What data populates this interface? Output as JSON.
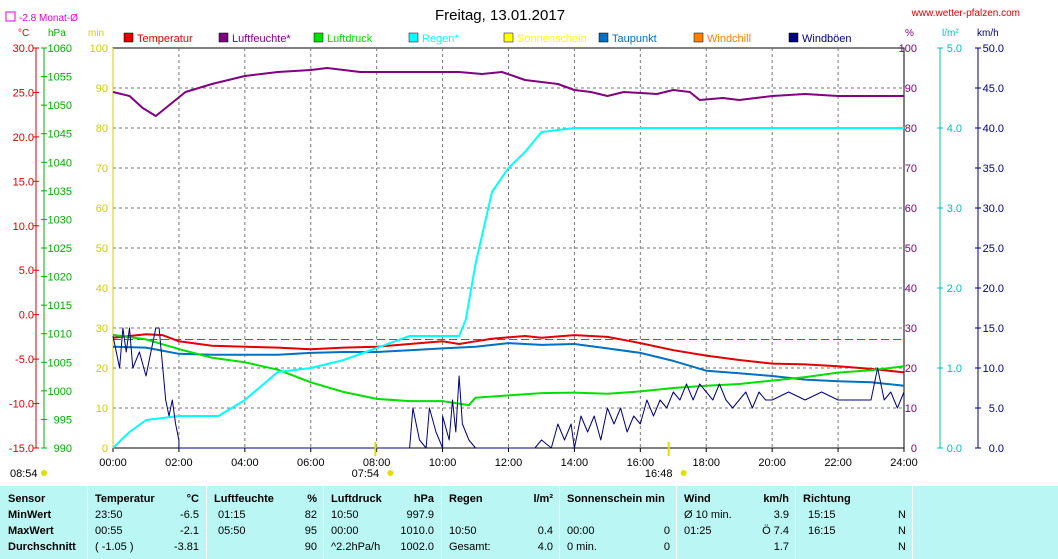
{
  "header": {
    "title": "Freitag, 13.01.2017",
    "site": "www.wetter-pfalzen.com",
    "monthly_avg_label": "-2.8 Monat-Ø"
  },
  "units": {
    "temp": "°C",
    "pressure": "hPa",
    "sunshine": "min",
    "humidity": "%",
    "rain": "l/m²",
    "wind": "km/h"
  },
  "legend": [
    {
      "name": "Temperatur",
      "color": "#e00000"
    },
    {
      "name": "Luftfeuchte*",
      "color": "#800080"
    },
    {
      "name": "Luftdruck",
      "color": "#00e000"
    },
    {
      "name": "Regen*",
      "color": "#00ffff"
    },
    {
      "name": "Sonnenschein",
      "color": "#ffff00"
    },
    {
      "name": "Taupunkt",
      "color": "#0070c0"
    },
    {
      "name": "Windchill",
      "color": "#ff8000"
    },
    {
      "name": "Windböen",
      "color": "#000080"
    }
  ],
  "chart_data": {
    "type": "line",
    "title": "Freitag, 13.01.2017",
    "x_ticks": [
      "00:00",
      "02:00",
      "04:00",
      "06:00",
      "08:00",
      "10:00",
      "12:00",
      "14:00",
      "16:00",
      "18:00",
      "20:00",
      "22:00",
      "24:00"
    ],
    "x_range_hours": [
      0,
      24
    ],
    "axes": {
      "temp_c": {
        "range": [
          -15,
          30
        ],
        "ticks": [
          "30.0",
          "25.0",
          "20.0",
          "15.0",
          "10.0",
          "5.0",
          "0.0",
          "-5.0",
          "-10.0",
          "-15.0"
        ]
      },
      "pressure_hpa": {
        "range": [
          990,
          1060
        ],
        "ticks": [
          "1060",
          "1055",
          "1050",
          "1045",
          "1040",
          "1035",
          "1030",
          "1025",
          "1020",
          "1015",
          "1010",
          "1005",
          "1000",
          "995",
          "990"
        ]
      },
      "sunshine_min": {
        "range": [
          0,
          100
        ],
        "ticks": [
          "100",
          "90",
          "80",
          "70",
          "60",
          "50",
          "40",
          "30",
          "20",
          "10",
          "0"
        ]
      },
      "humidity_pct": {
        "range": [
          0,
          100
        ],
        "ticks": [
          "100",
          "90",
          "80",
          "70",
          "60",
          "50",
          "40",
          "30",
          "20",
          "10",
          "0"
        ]
      },
      "rain_lm2": {
        "range": [
          0,
          5
        ],
        "ticks": [
          "5.0",
          "4.0",
          "3.0",
          "2.0",
          "1.0",
          "0.0"
        ]
      },
      "wind_kmh": {
        "range": [
          0,
          50
        ],
        "ticks": [
          "50.0",
          "45.0",
          "40.0",
          "35.0",
          "30.0",
          "25.0",
          "20.0",
          "15.0",
          "10.0",
          "5.0",
          "0.0"
        ]
      }
    },
    "monthly_avg_temp": -2.8,
    "grid": true,
    "sun_markers": [
      {
        "label": "08:54",
        "hour": 8.9,
        "where": "left"
      },
      {
        "label": "07:54",
        "hour": 7.9,
        "where": "below"
      },
      {
        "label": "16:48",
        "hour": 16.8,
        "where": "below"
      }
    ],
    "series": [
      {
        "name": "Luftfeuchte*",
        "axis": "humidity_pct",
        "color": "#800080",
        "points": [
          [
            0,
            89
          ],
          [
            0.5,
            88
          ],
          [
            0.9,
            85
          ],
          [
            1.3,
            83
          ],
          [
            1.6,
            85
          ],
          [
            2.2,
            89
          ],
          [
            3,
            91
          ],
          [
            4,
            93
          ],
          [
            5,
            94
          ],
          [
            6,
            94.5
          ],
          [
            6.5,
            95
          ],
          [
            7.5,
            94
          ],
          [
            9,
            94
          ],
          [
            10.5,
            94
          ],
          [
            11.2,
            93.5
          ],
          [
            11.8,
            94
          ],
          [
            12.5,
            92
          ],
          [
            13.5,
            91
          ],
          [
            14,
            89.5
          ],
          [
            14.5,
            89
          ],
          [
            15,
            88
          ],
          [
            15.5,
            89
          ],
          [
            16.5,
            88.5
          ],
          [
            17,
            89.5
          ],
          [
            17.5,
            89
          ],
          [
            17.8,
            87
          ],
          [
            18.5,
            87.5
          ],
          [
            19,
            87
          ],
          [
            19.5,
            87.5
          ],
          [
            20,
            88
          ],
          [
            21,
            88.5
          ],
          [
            22,
            88
          ],
          [
            24,
            88
          ]
        ]
      },
      {
        "name": "Temperatur",
        "axis": "temp_c",
        "color": "#e00000",
        "points": [
          [
            0,
            -2.6
          ],
          [
            1,
            -2.2
          ],
          [
            1.5,
            -2.3
          ],
          [
            2,
            -3
          ],
          [
            3,
            -3.5
          ],
          [
            5,
            -3.7
          ],
          [
            6,
            -3.9
          ],
          [
            7,
            -3.7
          ],
          [
            8,
            -3.6
          ],
          [
            9,
            -3.3
          ],
          [
            10,
            -3.0
          ],
          [
            10.5,
            -3.3
          ],
          [
            11,
            -3.0
          ],
          [
            11.5,
            -2.7
          ],
          [
            12.5,
            -2.4
          ],
          [
            13,
            -2.6
          ],
          [
            14,
            -2.3
          ],
          [
            15,
            -2.5
          ],
          [
            16,
            -3.2
          ],
          [
            17,
            -4.0
          ],
          [
            18,
            -4.6
          ],
          [
            19,
            -5.1
          ],
          [
            20,
            -5.5
          ],
          [
            21,
            -5.6
          ],
          [
            22,
            -5.8
          ],
          [
            23,
            -6.1
          ],
          [
            24,
            -6.5
          ]
        ]
      },
      {
        "name": "Taupunkt",
        "axis": "temp_c",
        "color": "#0070c0",
        "points": [
          [
            0,
            -3.6
          ],
          [
            1,
            -3.7
          ],
          [
            2,
            -4.4
          ],
          [
            3,
            -4.5
          ],
          [
            5,
            -4.5
          ],
          [
            6,
            -4.3
          ],
          [
            7,
            -4.2
          ],
          [
            8,
            -4.2
          ],
          [
            9,
            -4.0
          ],
          [
            10,
            -3.8
          ],
          [
            11,
            -3.6
          ],
          [
            12,
            -3.2
          ],
          [
            13,
            -3.4
          ],
          [
            14,
            -3.3
          ],
          [
            15,
            -3.8
          ],
          [
            16,
            -4.3
          ],
          [
            17,
            -5.2
          ],
          [
            18,
            -6.3
          ],
          [
            19,
            -6.6
          ],
          [
            20,
            -6.9
          ],
          [
            21,
            -7.3
          ],
          [
            22,
            -7.5
          ],
          [
            23,
            -7.6
          ],
          [
            24,
            -8.0
          ]
        ]
      },
      {
        "name": "Luftdruck",
        "axis": "pressure_hpa",
        "color": "#00e000",
        "points": [
          [
            0,
            1009.8
          ],
          [
            1,
            1009
          ],
          [
            2,
            1007.3
          ],
          [
            3,
            1005.8
          ],
          [
            4,
            1005
          ],
          [
            5,
            1003.7
          ],
          [
            6,
            1001.5
          ],
          [
            7,
            999.8
          ],
          [
            8,
            998.6
          ],
          [
            9,
            998.2
          ],
          [
            10,
            998.2
          ],
          [
            10.8,
            997.5
          ],
          [
            11,
            998.8
          ],
          [
            12,
            999.2
          ],
          [
            13,
            999.6
          ],
          [
            14,
            999.7
          ],
          [
            15,
            999.5
          ],
          [
            16,
            999.9
          ],
          [
            17,
            1000.5
          ],
          [
            18,
            1000.9
          ],
          [
            19,
            1001.2
          ],
          [
            20,
            1001.8
          ],
          [
            21,
            1002.4
          ],
          [
            22,
            1003.2
          ],
          [
            23,
            1003.6
          ],
          [
            24,
            1004.3
          ]
        ]
      },
      {
        "name": "Regen*",
        "axis": "rain_lm2",
        "color": "#00ffff",
        "points": [
          [
            0,
            0
          ],
          [
            0.5,
            0.2
          ],
          [
            1,
            0.35
          ],
          [
            2,
            0.4
          ],
          [
            3.2,
            0.4
          ],
          [
            4,
            0.6
          ],
          [
            5,
            0.95
          ],
          [
            6,
            1.0
          ],
          [
            7,
            1.1
          ],
          [
            8,
            1.25
          ],
          [
            9,
            1.4
          ],
          [
            10,
            1.4
          ],
          [
            10.5,
            1.4
          ],
          [
            10.7,
            1.6
          ],
          [
            11,
            2.3
          ],
          [
            11.5,
            3.2
          ],
          [
            12,
            3.5
          ],
          [
            12.5,
            3.7
          ],
          [
            13,
            3.95
          ],
          [
            14,
            4.0
          ],
          [
            16,
            4.0
          ],
          [
            24,
            4.0
          ]
        ]
      },
      {
        "name": "Windböen",
        "axis": "wind_kmh",
        "color": "#000080",
        "points": [
          [
            0,
            14
          ],
          [
            0.2,
            10
          ],
          [
            0.3,
            15
          ],
          [
            0.4,
            12
          ],
          [
            0.5,
            15
          ],
          [
            0.6,
            10
          ],
          [
            0.8,
            12
          ],
          [
            1,
            9
          ],
          [
            1.3,
            15
          ],
          [
            1.4,
            15
          ],
          [
            1.6,
            6
          ],
          [
            1.7,
            4
          ],
          [
            1.8,
            6
          ],
          [
            1.9,
            3
          ],
          [
            2,
            1
          ],
          [
            2,
            0
          ],
          [
            9,
            0
          ],
          [
            9.1,
            5
          ],
          [
            9.3,
            1
          ],
          [
            9.5,
            0
          ],
          [
            9.6,
            5
          ],
          [
            9.8,
            2
          ],
          [
            10,
            0
          ],
          [
            10,
            4
          ],
          [
            10.2,
            1
          ],
          [
            10.3,
            6
          ],
          [
            10.4,
            2
          ],
          [
            10.5,
            9
          ],
          [
            10.6,
            3
          ],
          [
            10.8,
            1
          ],
          [
            11,
            0
          ],
          [
            12.8,
            0
          ],
          [
            13,
            1
          ],
          [
            13.3,
            0
          ],
          [
            13.5,
            3
          ],
          [
            13.7,
            1
          ],
          [
            13.9,
            3
          ],
          [
            14,
            0
          ],
          [
            14.2,
            4
          ],
          [
            14.4,
            2
          ],
          [
            14.6,
            4
          ],
          [
            14.8,
            1
          ],
          [
            15,
            5
          ],
          [
            15.2,
            3
          ],
          [
            15.4,
            5
          ],
          [
            15.6,
            2
          ],
          [
            15.8,
            4
          ],
          [
            16,
            3
          ],
          [
            16.2,
            6
          ],
          [
            16.4,
            4
          ],
          [
            16.6,
            6
          ],
          [
            16.8,
            5
          ],
          [
            17,
            7
          ],
          [
            17.2,
            6
          ],
          [
            17.4,
            8
          ],
          [
            17.6,
            6
          ],
          [
            17.8,
            8
          ],
          [
            18,
            7
          ],
          [
            18.2,
            6
          ],
          [
            18.4,
            8
          ],
          [
            18.6,
            6
          ],
          [
            18.8,
            5
          ],
          [
            19,
            6
          ],
          [
            19.2,
            7
          ],
          [
            19.4,
            5
          ],
          [
            19.6,
            7
          ],
          [
            19.8,
            6
          ],
          [
            20,
            6
          ],
          [
            20.5,
            7
          ],
          [
            21,
            6
          ],
          [
            21.5,
            7
          ],
          [
            22,
            6
          ],
          [
            22.5,
            6
          ],
          [
            23,
            6
          ],
          [
            23.2,
            10
          ],
          [
            23.4,
            6
          ],
          [
            23.6,
            7
          ],
          [
            23.8,
            5
          ],
          [
            24,
            7
          ]
        ]
      }
    ]
  },
  "table": {
    "headers": {
      "sensor": "Sensor",
      "temperature": "Temperatur",
      "temp_unit": "°C",
      "humidity": "Luftfeuchte",
      "hum_unit": "%",
      "pressure": "Luftdruck",
      "press_unit": "hPa",
      "rain": "Regen",
      "rain_unit": "l/m²",
      "sunshine": "Sonnenschein min",
      "wind": "Wind",
      "wind_unit": "km/h",
      "direction": "Richtung"
    },
    "rows": [
      {
        "label": "MinWert",
        "t_time": "23:50",
        "t_val": "-6.5",
        "h_time": "01:15",
        "h_val": "82",
        "p_time": "10:50",
        "p_val": "997.9",
        "r_time": "",
        "r_val": "",
        "s_time": "",
        "s_val": "",
        "w_time": "Ø 10 min.",
        "w_val": "3.9",
        "d_time": "15:15",
        "d_val": "N"
      },
      {
        "label": "MaxWert",
        "t_time": "00:55",
        "t_val": "-2.1",
        "h_time": "05:50",
        "h_val": "95",
        "p_time": "00:00",
        "p_val": "1010.0",
        "r_time": "10:50",
        "r_val": "0.4",
        "s_time": "00:00",
        "s_val": "0",
        "w_time": "01:25",
        "w_val": "Ö 7.4",
        "d_time": "16:15",
        "d_val": "N"
      },
      {
        "label": "Durchschnitt",
        "t_time": "( -1.05 )",
        "t_val": "-3.81",
        "h_time": "",
        "h_val": "90",
        "p_time": "^2.2hPa/h",
        "p_val": "1002.0",
        "r_time": "Gesamt:",
        "r_val": "4.0",
        "s_time": "0 min.",
        "s_val": "0",
        "w_time": "",
        "w_val": "1.7",
        "d_time": "",
        "d_val": "N"
      }
    ]
  }
}
